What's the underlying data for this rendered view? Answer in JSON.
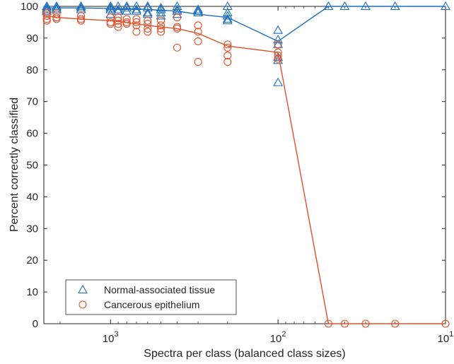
{
  "chart_data": {
    "type": "line",
    "xlabel": "Spectra per class (balanced class sizes)",
    "ylabel": "Percent correctly classified",
    "x_scale": "log",
    "x_reversed": true,
    "xlim": [
      2500,
      10
    ],
    "ylim": [
      0,
      100
    ],
    "y_ticks": [
      0,
      10,
      20,
      30,
      40,
      50,
      60,
      70,
      80,
      90,
      100
    ],
    "x_ticks": [
      {
        "base": "10",
        "exp": "3",
        "value": 1000
      },
      {
        "base": "10",
        "exp": "2",
        "value": 100
      },
      {
        "base": "10",
        "exp": "1",
        "value": 10
      }
    ],
    "grid": false,
    "legend_position": "bottom-left",
    "series": [
      {
        "name": "Normal-associated tissue",
        "color": "#1f6fbf",
        "marker": "triangle",
        "mean_line": [
          [
            2400,
            99.5
          ],
          [
            2100,
            99.5
          ],
          [
            1500,
            99.5
          ],
          [
            1000,
            99.3
          ],
          [
            700,
            99.2
          ],
          [
            600,
            99
          ],
          [
            500,
            98.8
          ],
          [
            400,
            98.5
          ],
          [
            300,
            97.5
          ],
          [
            200,
            96.5
          ],
          [
            100,
            89
          ],
          [
            50,
            100
          ],
          [
            40,
            100
          ],
          [
            30,
            100
          ],
          [
            20,
            100
          ],
          [
            10,
            100
          ]
        ],
        "points": [
          [
            2400,
            100
          ],
          [
            2400,
            99.5
          ],
          [
            2400,
            99
          ],
          [
            2400,
            98.5
          ],
          [
            2100,
            100
          ],
          [
            2100,
            99.5
          ],
          [
            2100,
            99
          ],
          [
            1500,
            100
          ],
          [
            1500,
            99.5
          ],
          [
            1500,
            99
          ],
          [
            1000,
            100
          ],
          [
            1000,
            99.5
          ],
          [
            1000,
            99
          ],
          [
            1000,
            97.5
          ],
          [
            900,
            100
          ],
          [
            900,
            99
          ],
          [
            900,
            98.5
          ],
          [
            800,
            100
          ],
          [
            800,
            99.5
          ],
          [
            800,
            98.5
          ],
          [
            700,
            100
          ],
          [
            700,
            99
          ],
          [
            700,
            98.5
          ],
          [
            600,
            100
          ],
          [
            600,
            99.5
          ],
          [
            600,
            98
          ],
          [
            600,
            97.5
          ],
          [
            500,
            99.5
          ],
          [
            500,
            99
          ],
          [
            500,
            98
          ],
          [
            500,
            97
          ],
          [
            400,
            100
          ],
          [
            400,
            99
          ],
          [
            400,
            98.5
          ],
          [
            400,
            97.5
          ],
          [
            300,
            99
          ],
          [
            300,
            98.5
          ],
          [
            300,
            98
          ],
          [
            200,
            100
          ],
          [
            200,
            98
          ],
          [
            200,
            97
          ],
          [
            200,
            96
          ],
          [
            200,
            95.5
          ],
          [
            100,
            92.5
          ],
          [
            100,
            89.5
          ],
          [
            100,
            88
          ],
          [
            100,
            84
          ],
          [
            100,
            83
          ],
          [
            100,
            76
          ],
          [
            50,
            100
          ],
          [
            40,
            100
          ],
          [
            30,
            100
          ],
          [
            20,
            100
          ],
          [
            10,
            100
          ]
        ]
      },
      {
        "name": "Cancerous epithelium",
        "color": "#e0502a",
        "marker": "circle",
        "mean_line": [
          [
            2400,
            97
          ],
          [
            2100,
            96.5
          ],
          [
            1500,
            96
          ],
          [
            1000,
            95.5
          ],
          [
            700,
            94.5
          ],
          [
            600,
            94
          ],
          [
            500,
            93.5
          ],
          [
            400,
            93
          ],
          [
            300,
            91.5
          ],
          [
            200,
            87.5
          ],
          [
            100,
            85.5
          ],
          [
            50,
            0
          ],
          [
            40,
            0
          ],
          [
            30,
            0
          ],
          [
            20,
            0
          ],
          [
            10,
            0
          ]
        ],
        "points": [
          [
            2400,
            98
          ],
          [
            2400,
            97
          ],
          [
            2400,
            96
          ],
          [
            2400,
            95.5
          ],
          [
            2100,
            97.5
          ],
          [
            2100,
            96.5
          ],
          [
            2100,
            96
          ],
          [
            1500,
            97
          ],
          [
            1500,
            96
          ],
          [
            1500,
            95.5
          ],
          [
            1000,
            96.5
          ],
          [
            1000,
            95
          ],
          [
            1000,
            94.5
          ],
          [
            900,
            96.5
          ],
          [
            900,
            95.5
          ],
          [
            900,
            94.5
          ],
          [
            900,
            93.5
          ],
          [
            800,
            96
          ],
          [
            800,
            95
          ],
          [
            800,
            94.5
          ],
          [
            700,
            96
          ],
          [
            700,
            95
          ],
          [
            700,
            94
          ],
          [
            700,
            92
          ],
          [
            600,
            95.5
          ],
          [
            600,
            94.5
          ],
          [
            600,
            93
          ],
          [
            600,
            92
          ],
          [
            500,
            95.5
          ],
          [
            500,
            94
          ],
          [
            500,
            93
          ],
          [
            500,
            92
          ],
          [
            400,
            96.5
          ],
          [
            400,
            93.5
          ],
          [
            400,
            93
          ],
          [
            400,
            87
          ],
          [
            300,
            94
          ],
          [
            300,
            92
          ],
          [
            300,
            89
          ],
          [
            300,
            82.5
          ],
          [
            200,
            88
          ],
          [
            200,
            87
          ],
          [
            200,
            84.5
          ],
          [
            200,
            82.5
          ],
          [
            100,
            88
          ],
          [
            100,
            85.5
          ],
          [
            100,
            84.5
          ],
          [
            100,
            83.5
          ],
          [
            50,
            0
          ],
          [
            40,
            0
          ],
          [
            30,
            0
          ],
          [
            20,
            0
          ],
          [
            10,
            0
          ]
        ]
      }
    ]
  }
}
